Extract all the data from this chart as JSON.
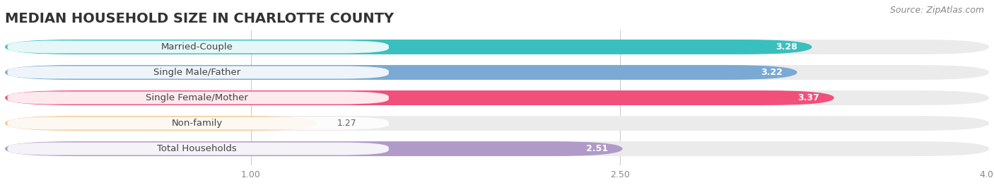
{
  "title": "MEDIAN HOUSEHOLD SIZE IN CHARLOTTE COUNTY",
  "source": "Source: ZipAtlas.com",
  "categories": [
    "Married-Couple",
    "Single Male/Father",
    "Single Female/Mother",
    "Non-family",
    "Total Households"
  ],
  "values": [
    3.28,
    3.22,
    3.37,
    1.27,
    2.51
  ],
  "bar_colors": [
    "#3abfbf",
    "#7aaad4",
    "#f0507a",
    "#f5c890",
    "#b09ac8"
  ],
  "xlim": [
    0.0,
    4.0
  ],
  "xticks": [
    1.0,
    2.5,
    4.0
  ],
  "xstart": 0.0,
  "background_color": "#ffffff",
  "bar_bg_color": "#ebebeb",
  "title_fontsize": 14,
  "label_fontsize": 9.5,
  "value_fontsize": 9,
  "source_fontsize": 9
}
